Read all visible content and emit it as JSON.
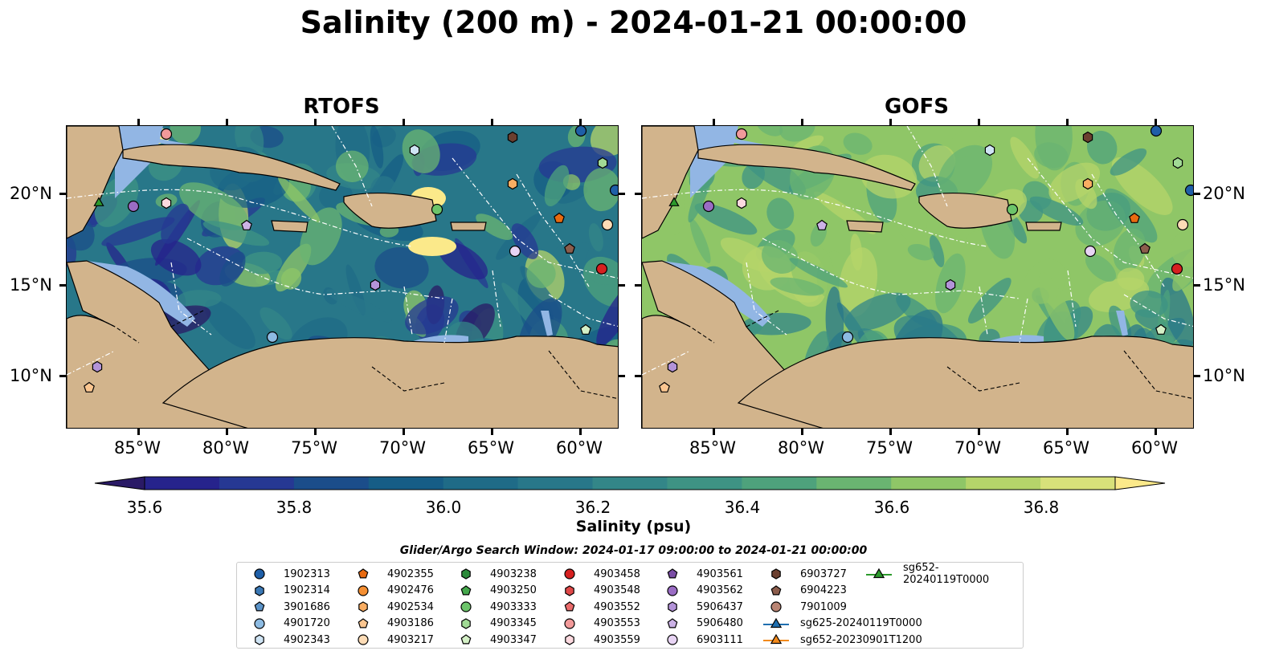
{
  "title": "Salinity (200 m) - 2024-01-21 00:00:00",
  "panels": [
    {
      "id": "rtofs",
      "title": "RTOFS"
    },
    {
      "id": "gofs",
      "title": "GOFS"
    }
  ],
  "axes": {
    "lat_ticks": [
      "20°N",
      "15°N",
      "10°N"
    ],
    "lon_ticks": [
      "85°W",
      "80°W",
      "75°W",
      "70°W",
      "65°W",
      "60°W"
    ]
  },
  "colorbar": {
    "label": "Salinity (psu)",
    "ticks": [
      "35.6",
      "35.8",
      "36.0",
      "36.2",
      "36.4",
      "36.6",
      "36.8"
    ],
    "min": 35.6,
    "max": 36.9,
    "step": 0.1,
    "colors": [
      "#2a1a66",
      "#26238c",
      "#263893",
      "#1b4d8a",
      "#165d86",
      "#1f6b87",
      "#287789",
      "#338688",
      "#3e9384",
      "#4ea27c",
      "#6ab471",
      "#8fc667",
      "#b5d46a",
      "#d8e17a",
      "#fbe98a"
    ],
    "extend": "both"
  },
  "search_window": "Glider/Argo Search Window: 2024-01-17 09:00:00 to 2024-01-21 00:00:00",
  "colors": {
    "land": "#d2b48c",
    "shelf": "#92b6e4",
    "track": "#ffffff"
  },
  "legend": [
    {
      "label": "1902313",
      "marker": "circle",
      "color": "#1f5fa8"
    },
    {
      "label": "1902314",
      "marker": "hexagon",
      "color": "#3a78b5"
    },
    {
      "label": "3901686",
      "marker": "pentagon",
      "color": "#5b93c8"
    },
    {
      "label": "4901720",
      "marker": "circle",
      "color": "#8dbbe2"
    },
    {
      "label": "4902343",
      "marker": "hexagon",
      "color": "#cfe4f4"
    },
    {
      "label": "4902355",
      "marker": "pentagon",
      "color": "#e86a10"
    },
    {
      "label": "4902476",
      "marker": "circle",
      "color": "#f58f32"
    },
    {
      "label": "4902534",
      "marker": "hexagon",
      "color": "#f9ad62"
    },
    {
      "label": "4903186",
      "marker": "pentagon",
      "color": "#fbc690"
    },
    {
      "label": "4903217",
      "marker": "circle",
      "color": "#fddcb6"
    },
    {
      "label": "4903238",
      "marker": "hexagon",
      "color": "#2b8a3a"
    },
    {
      "label": "4903250",
      "marker": "pentagon",
      "color": "#45a84c"
    },
    {
      "label": "4903333",
      "marker": "circle",
      "color": "#6cc46a"
    },
    {
      "label": "4903345",
      "marker": "hexagon",
      "color": "#a1da95"
    },
    {
      "label": "4903347",
      "marker": "pentagon",
      "color": "#d4f0c6"
    },
    {
      "label": "4903458",
      "marker": "circle",
      "color": "#d62020"
    },
    {
      "label": "4903548",
      "marker": "hexagon",
      "color": "#e04848"
    },
    {
      "label": "4903552",
      "marker": "pentagon",
      "color": "#ea6b6b"
    },
    {
      "label": "4903553",
      "marker": "circle",
      "color": "#f29a9a"
    },
    {
      "label": "4903559",
      "marker": "hexagon",
      "color": "#fcd9df"
    },
    {
      "label": "4903561",
      "marker": "pentagon",
      "color": "#7b4ea6"
    },
    {
      "label": "4903562",
      "marker": "circle",
      "color": "#9a6cc4"
    },
    {
      "label": "5906437",
      "marker": "hexagon",
      "color": "#b393d8"
    },
    {
      "label": "5906480",
      "marker": "pentagon",
      "color": "#ccb2e6"
    },
    {
      "label": "6903111",
      "marker": "circle",
      "color": "#e8d4f4"
    },
    {
      "label": "6903727",
      "marker": "hexagon",
      "color": "#6b3f2f"
    },
    {
      "label": "6904223",
      "marker": "pentagon",
      "color": "#8c5d4c"
    },
    {
      "label": "7901009",
      "marker": "circle",
      "color": "#b98473"
    },
    {
      "label": "sg625-20240119T0000",
      "marker": "triangle-line",
      "color": "#1f6fb0"
    },
    {
      "label": "sg652-20230901T1200",
      "marker": "triangle-line",
      "color": "#f28a1c"
    },
    {
      "label": "sg652-20240119T0000",
      "marker": "triangle-line",
      "color": "#2c9a2c"
    }
  ]
}
